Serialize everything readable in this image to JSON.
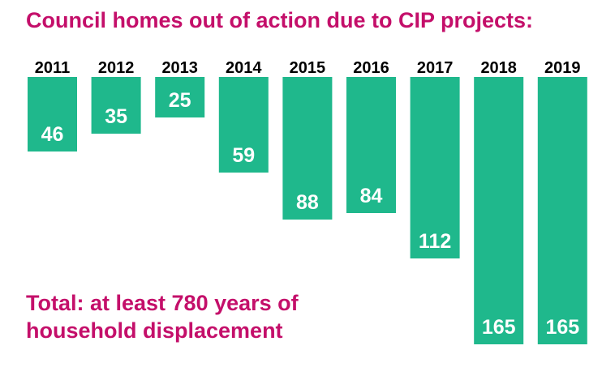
{
  "colors": {
    "accent": "#c40f6a",
    "bar": "#1fb88c",
    "year_text": "#000000",
    "value_text": "#ffffff"
  },
  "title": "Council homes out of action due to CIP projects:",
  "total": {
    "line1": "Total: at least 780 years of",
    "line2": "household displacement"
  },
  "chart_data": {
    "type": "bar",
    "orientation": "downward",
    "categories": [
      "2011",
      "2012",
      "2013",
      "2014",
      "2015",
      "2016",
      "2017",
      "2018",
      "2019"
    ],
    "values": [
      46,
      35,
      25,
      59,
      88,
      84,
      112,
      165,
      165
    ],
    "title": "Council homes out of action due to CIP projects:",
    "xlabel": "",
    "ylabel": "",
    "ylim": [
      0,
      165
    ],
    "grid": false,
    "legend": "none",
    "data_labels": true
  }
}
